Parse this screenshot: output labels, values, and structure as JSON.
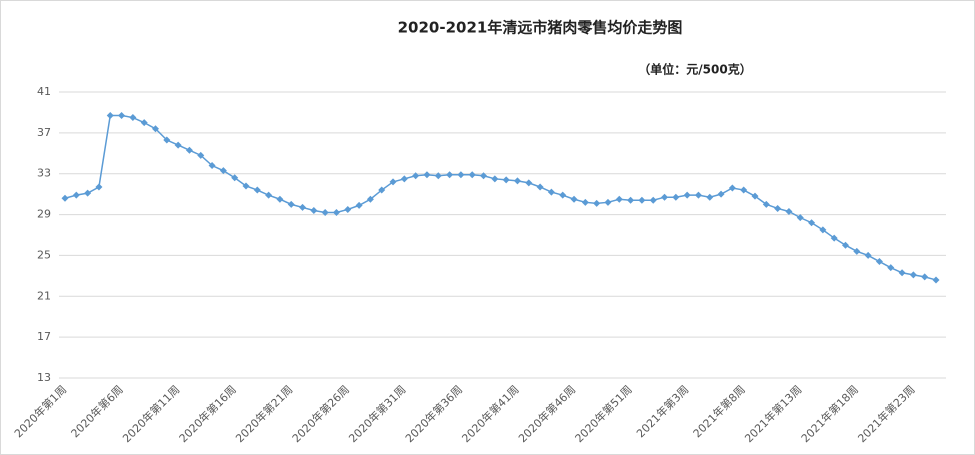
{
  "chart_data": {
    "type": "line",
    "title": "2020-2021年清远市猪肉零售均价走势图",
    "subtitle": "（单位：元/500克）",
    "categories": [
      "2020年第1周",
      null,
      null,
      null,
      null,
      "2020年第6周",
      null,
      null,
      null,
      null,
      "2020年第11周",
      null,
      null,
      null,
      null,
      "2020年第16周",
      null,
      null,
      null,
      null,
      "2020年第21周",
      null,
      null,
      null,
      null,
      "2020年第26周",
      null,
      null,
      null,
      null,
      "2020年第31周",
      null,
      null,
      null,
      null,
      "2020年第36周",
      null,
      null,
      null,
      null,
      "2020年第41周",
      null,
      null,
      null,
      null,
      "2020年第46周",
      null,
      null,
      null,
      null,
      "2020年第51周",
      null,
      null,
      null,
      null,
      "2021年第3周",
      null,
      null,
      null,
      null,
      "2021年第8周",
      null,
      null,
      null,
      null,
      "2021年第13周",
      null,
      null,
      null,
      null,
      "2021年第18周",
      null,
      null,
      null,
      null,
      "2021年第23周",
      null,
      null
    ],
    "series": [
      {
        "name": "猪肉零售均价",
        "color": "#5b9bd5",
        "values": [
          30.6,
          30.9,
          31.1,
          31.7,
          38.7,
          38.7,
          38.5,
          38.0,
          37.4,
          36.3,
          35.8,
          35.3,
          34.8,
          33.8,
          33.3,
          32.6,
          31.8,
          31.4,
          30.9,
          30.5,
          30.0,
          29.7,
          29.4,
          29.2,
          29.2,
          29.5,
          29.9,
          30.5,
          31.4,
          32.2,
          32.5,
          32.8,
          32.9,
          32.8,
          32.9,
          32.9,
          32.9,
          32.8,
          32.5,
          32.4,
          32.3,
          32.1,
          31.7,
          31.2,
          30.9,
          30.5,
          30.2,
          30.1,
          30.2,
          30.5,
          30.4,
          30.4,
          30.4,
          30.7,
          30.7,
          30.9,
          30.9,
          30.7,
          31.0,
          31.6,
          31.4,
          30.8,
          30.0,
          29.6,
          29.3,
          28.7,
          28.2,
          27.5,
          26.7,
          26.0,
          25.4,
          25.0,
          24.4,
          23.8,
          23.3,
          23.1,
          22.9,
          22.6
        ]
      }
    ],
    "ylim": [
      13,
      41
    ],
    "yticks": [
      13,
      17,
      21,
      25,
      29,
      33,
      37,
      41
    ],
    "grid": true
  }
}
